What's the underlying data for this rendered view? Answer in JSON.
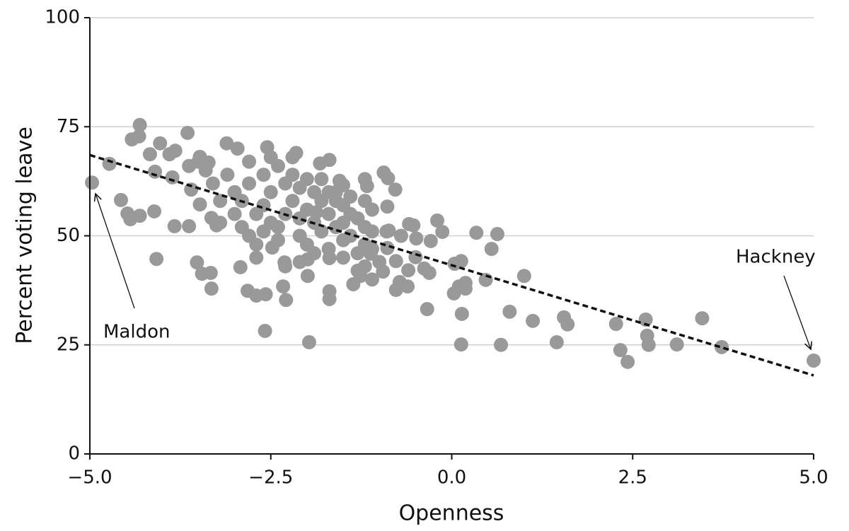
{
  "chart_data": {
    "type": "scatter",
    "xlabel": "Openness",
    "ylabel": "Percent voting leave",
    "xlim": [
      -5,
      5
    ],
    "ylim": [
      0,
      100
    ],
    "xticks": [
      {
        "value": -5,
        "label": "−5.0"
      },
      {
        "value": -2.5,
        "label": "−2.5"
      },
      {
        "value": 0,
        "label": "0.0"
      },
      {
        "value": 2.5,
        "label": "2.5"
      },
      {
        "value": 5,
        "label": "5.0"
      }
    ],
    "yticks": [
      0,
      25,
      50,
      75,
      100
    ],
    "grid": true,
    "color": "#999999",
    "x": [
      -4.97,
      -4.73,
      -4.31,
      -4.42,
      -4.32,
      -4.57,
      -4.48,
      -4.44,
      -4.31,
      -4.17,
      -4.1,
      -4.11,
      -4.08,
      -4.03,
      -3.9,
      -3.82,
      -3.86,
      -3.83,
      -3.65,
      -3.63,
      -3.63,
      -3.6,
      -3.52,
      -3.48,
      -3.45,
      -3.33,
      -3.32,
      -3.48,
      -3.36,
      -3.32,
      -3.25,
      -3.11,
      -2.96,
      -2.92,
      -2.82,
      -2.7,
      -2.57,
      -2.58,
      -2.55,
      -2.48,
      -2.33,
      -2.29,
      -2.31,
      -1.97,
      -1.99,
      -1.99,
      -1.69,
      -1.69,
      -1.69,
      -1.69,
      -1.82,
      -2.15,
      -1.87,
      -1.55,
      -1.5,
      -1.2,
      -1.17,
      -1.36,
      -1.26,
      -1.1,
      -1.12,
      -0.95,
      -0.94,
      -0.88,
      -0.89,
      -0.78,
      -0.87,
      -0.89,
      -0.77,
      -0.77,
      -0.72,
      -0.61,
      -0.6,
      -0.59,
      -0.53,
      -0.49,
      -0.5,
      -0.38,
      -0.31,
      -0.29,
      -0.34,
      -0.2,
      -0.13,
      0.04,
      0.03,
      0.1,
      0.13,
      0.13,
      0.14,
      0.19,
      0.19,
      0.34,
      0.63,
      0.55,
      0.47,
      0.68,
      0.8,
      1.0,
      1.12,
      1.45,
      1.55,
      1.6,
      2.27,
      2.33,
      2.43,
      2.68,
      2.7,
      2.72,
      3.11,
      3.46,
      3.73,
      5.0,
      -3.0,
      -2.9,
      -2.8,
      -2.7,
      -2.6,
      -2.5,
      -2.4,
      -2.3,
      -2.2,
      -2.1,
      -2.0,
      -1.9,
      -1.8,
      -1.7,
      -1.6,
      -1.5,
      -1.4,
      -1.3,
      -1.2,
      -1.1,
      -2.9,
      -2.8,
      -2.7,
      -2.6,
      -2.5,
      -2.4,
      -2.3,
      -2.2,
      -2.1,
      -2.0,
      -1.9,
      -1.8,
      -1.7,
      -1.6,
      -1.5,
      -1.4,
      -1.3,
      -1.2,
      -1.1,
      -1.0,
      -3.1,
      -3.0,
      -2.6,
      -2.4,
      -2.2,
      -2.0,
      -1.8,
      -1.6,
      -1.4,
      -1.2,
      -2.7,
      -2.3,
      -2.1,
      -1.9,
      -1.5,
      -1.3,
      -1.1,
      -0.9,
      -0.7,
      -3.2,
      -3.3,
      -3.4,
      -3.5,
      -3.2,
      -2.8,
      -2.5,
      -2.1,
      -1.7,
      -1.5,
      -1.2
    ],
    "y": [
      62.2,
      66.5,
      75.4,
      72.1,
      72.8,
      58.2,
      55.1,
      53.8,
      54.6,
      68.7,
      64.7,
      55.6,
      44.7,
      71.2,
      68.7,
      69.5,
      63.4,
      52.2,
      73.6,
      66.0,
      52.2,
      60.6,
      43.9,
      57.2,
      41.3,
      41.5,
      37.9,
      68.1,
      66.8,
      54.1,
      52.4,
      71.2,
      70.0,
      42.8,
      37.4,
      36.3,
      36.6,
      28.2,
      70.3,
      47.3,
      38.4,
      35.3,
      43.9,
      25.6,
      40.8,
      44.6,
      44.9,
      37.3,
      35.5,
      67.4,
      66.6,
      69.0,
      55.4,
      62.6,
      61.6,
      63.0,
      61.4,
      38.9,
      40.8,
      40.0,
      45.9,
      41.8,
      64.5,
      63.2,
      56.7,
      60.6,
      51.2,
      47.2,
      37.6,
      44.2,
      39.4,
      38.4,
      42.1,
      52.7,
      52.4,
      49.4,
      45.1,
      42.5,
      41.5,
      48.8,
      33.2,
      53.5,
      50.9,
      43.6,
      36.8,
      38.4,
      44.2,
      25.1,
      32.1,
      39.2,
      37.9,
      50.7,
      50.4,
      47.0,
      39.9,
      25.0,
      32.6,
      40.8,
      30.5,
      25.6,
      31.3,
      29.7,
      29.8,
      23.8,
      21.1,
      30.8,
      27.1,
      25.0,
      25.1,
      31.1,
      24.5,
      21.4,
      60,
      58,
      62,
      55,
      57,
      60,
      52,
      55,
      58,
      61,
      56,
      53,
      58,
      55,
      52,
      57,
      50,
      54,
      48,
      51,
      52,
      50,
      48,
      51,
      53,
      49,
      62,
      64,
      50,
      48,
      60,
      51,
      47,
      58,
      45,
      55,
      46,
      43,
      56,
      44,
      64,
      55,
      64,
      66,
      68,
      63,
      63,
      60,
      59,
      58,
      45,
      43,
      44,
      46,
      49,
      42,
      47,
      51,
      50,
      58,
      62,
      65,
      67,
      53,
      67,
      68,
      54,
      60,
      53,
      52
    ],
    "trend_line": {
      "x": [
        -5,
        5
      ],
      "y": [
        68.5,
        18
      ]
    },
    "annotations": [
      {
        "text": "Maldon"
      },
      {
        "text": "Hackney"
      }
    ]
  }
}
